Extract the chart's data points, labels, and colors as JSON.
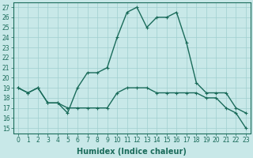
{
  "xlabel": "Humidex (Indice chaleur)",
  "xlim": [
    -0.5,
    23.5
  ],
  "ylim": [
    14.5,
    27.5
  ],
  "yticks": [
    15,
    16,
    17,
    18,
    19,
    20,
    21,
    22,
    23,
    24,
    25,
    26,
    27
  ],
  "xticks": [
    0,
    1,
    2,
    3,
    4,
    5,
    6,
    7,
    8,
    9,
    10,
    11,
    12,
    13,
    14,
    15,
    16,
    17,
    18,
    19,
    20,
    21,
    22,
    23
  ],
  "xtick_labels": [
    "0",
    "1",
    "2",
    "3",
    "4",
    "5",
    "6",
    "7",
    "8",
    "9",
    "10",
    "11",
    "12",
    "13",
    "14",
    "15",
    "16",
    "17",
    "18",
    "19",
    "20",
    "21",
    "22",
    "23"
  ],
  "bg_color": "#c8e8e8",
  "line_color": "#1a6b5a",
  "line1_x": [
    0,
    1,
    2,
    3,
    4,
    5,
    6,
    7,
    8,
    9,
    10,
    11,
    12,
    13,
    14,
    15,
    16,
    17,
    18,
    19,
    20,
    21,
    22,
    23
  ],
  "line1_y": [
    19.0,
    18.5,
    19.0,
    17.5,
    17.5,
    16.5,
    19.0,
    20.5,
    20.5,
    21.0,
    24.0,
    26.5,
    27.0,
    25.0,
    26.0,
    26.0,
    26.5,
    23.5,
    19.5,
    18.5,
    18.5,
    18.5,
    17.0,
    16.5
  ],
  "line2_x": [
    0,
    1,
    2,
    3,
    4,
    5,
    6,
    7,
    8,
    9,
    10,
    11,
    12,
    13,
    14,
    15,
    16,
    17,
    18,
    19,
    20,
    21,
    22,
    23
  ],
  "line2_y": [
    19.0,
    18.5,
    19.0,
    17.5,
    17.5,
    17.0,
    17.0,
    17.0,
    17.0,
    17.0,
    18.5,
    19.0,
    19.0,
    19.0,
    18.5,
    18.5,
    18.5,
    18.5,
    18.5,
    18.0,
    18.0,
    17.0,
    16.5,
    15.0
  ],
  "marker": "+",
  "markersize": 3,
  "linewidth": 1.0,
  "grid_color": "#9fcfcf",
  "tick_fontsize": 5.5,
  "xlabel_fontsize": 7
}
